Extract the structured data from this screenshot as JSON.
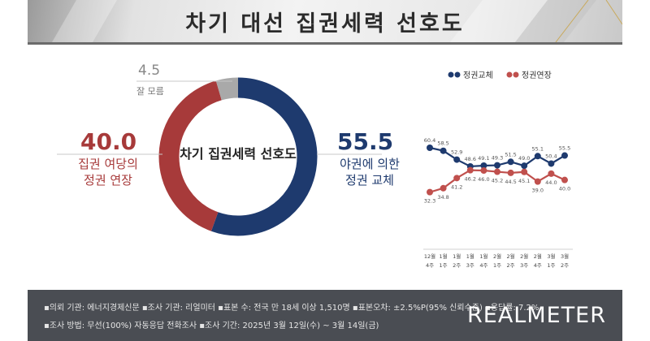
{
  "title": "차기 대선 집권세력 선호도",
  "donut": {
    "center_label": "차기 집권세력 선호도",
    "segments": [
      {
        "name": "정권 교체",
        "value": 55.5,
        "value_text": "55.5",
        "label_lines": [
          "야권에 의한",
          "정권 교체"
        ],
        "color": "#1e3a6e"
      },
      {
        "name": "정권 연장",
        "value": 40.0,
        "value_text": "40.0",
        "label_lines": [
          "집권 여당의",
          "정권 연장"
        ],
        "color": "#a73a3a"
      },
      {
        "name": "잘 모름",
        "value": 4.5,
        "value_text": "4.5",
        "label_lines": [
          "잘 모름"
        ],
        "color": "#a9a9a9"
      }
    ]
  },
  "chart_data": {
    "type": "line",
    "title": "",
    "categories": [
      [
        "12월",
        "4주"
      ],
      [
        "1월",
        "1주"
      ],
      [
        "1월",
        "2주"
      ],
      [
        "1월",
        "3주"
      ],
      [
        "1월",
        "4주"
      ],
      [
        "2월",
        "1주"
      ],
      [
        "2월",
        "2주"
      ],
      [
        "2월",
        "3주"
      ],
      [
        "2월",
        "4주"
      ],
      [
        "3월",
        "1주"
      ],
      [
        "3월",
        "2주"
      ]
    ],
    "series": [
      {
        "name": "정권교체",
        "color": "#1e3a6e",
        "values": [
          60.4,
          58.5,
          52.9,
          48.6,
          49.1,
          49.3,
          51.5,
          49.0,
          55.1,
          50.4,
          55.5
        ]
      },
      {
        "name": "정권연장",
        "color": "#c0504d",
        "values": [
          32.3,
          34.8,
          41.2,
          46.2,
          46.0,
          45.2,
          44.5,
          45.1,
          39.0,
          44.0,
          40.0
        ]
      }
    ],
    "point_labels": [
      [
        "60.4",
        "58.5",
        "52.9",
        "48.6",
        "49.1",
        "49.3",
        "51.5",
        "49.0",
        "55.1",
        "50.4",
        "55.5"
      ],
      [
        "32.3",
        "34.8",
        "41.2",
        "46.2",
        "46.0",
        "45.2",
        "44.5",
        "45.1",
        "39.0",
        "44.0",
        "40.0"
      ]
    ],
    "legend_position": "top",
    "ylim": [
      28,
      64
    ]
  },
  "footer": {
    "line1": "▪의뢰 기관: 에너지경제신문  ▪조사 기관: 리얼미터  ▪표본 수: 전국 만 18세 이상 1,510명  ▪표본오차: ±2.5%P(95% 신뢰수준)  ▪응답률: 7.2%",
    "line2": "▪조사 방법: 무선(100%) 자동응답 전화조사  ▪조사 기간: 2025년 3월 12일(수) ~ 3월 14일(금)",
    "logo": "REALMETER"
  }
}
